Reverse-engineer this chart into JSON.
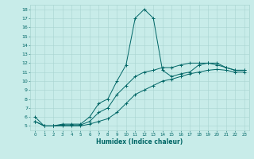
{
  "title": "",
  "xlabel": "Humidex (Indice chaleur)",
  "bg_color": "#c8ece9",
  "grid_color": "#a8d4d0",
  "line_color": "#006666",
  "xlim": [
    -0.5,
    23.5
  ],
  "ylim": [
    4.5,
    18.5
  ],
  "xticks": [
    0,
    1,
    2,
    3,
    4,
    5,
    6,
    7,
    8,
    9,
    10,
    11,
    12,
    13,
    14,
    15,
    16,
    17,
    18,
    19,
    20,
    21,
    22,
    23
  ],
  "yticks": [
    5,
    6,
    7,
    8,
    9,
    10,
    11,
    12,
    13,
    14,
    15,
    16,
    17,
    18
  ],
  "series": [
    {
      "x": [
        0,
        1,
        2,
        3,
        4,
        5,
        6,
        7,
        8,
        9,
        10,
        11,
        12,
        13,
        14,
        15,
        16,
        17,
        18,
        19,
        20,
        21,
        22,
        23
      ],
      "y": [
        6.0,
        5.0,
        5.0,
        5.2,
        5.2,
        5.2,
        6.0,
        7.5,
        8.0,
        10.0,
        11.8,
        17.0,
        18.0,
        17.0,
        11.2,
        10.5,
        10.8,
        11.0,
        11.8,
        12.0,
        12.0,
        11.5,
        11.2,
        11.2
      ]
    },
    {
      "x": [
        0,
        1,
        2,
        3,
        4,
        5,
        6,
        7,
        8,
        9,
        10,
        11,
        12,
        13,
        14,
        15,
        16,
        17,
        18,
        19,
        20,
        21,
        22,
        23
      ],
      "y": [
        5.5,
        5.0,
        5.0,
        5.1,
        5.1,
        5.1,
        5.5,
        6.5,
        7.0,
        8.5,
        9.5,
        10.5,
        11.0,
        11.2,
        11.5,
        11.5,
        11.8,
        12.0,
        12.0,
        12.0,
        11.8,
        11.5,
        11.2,
        11.2
      ]
    },
    {
      "x": [
        0,
        1,
        2,
        3,
        4,
        5,
        6,
        7,
        8,
        9,
        10,
        11,
        12,
        13,
        14,
        15,
        16,
        17,
        18,
        19,
        20,
        21,
        22,
        23
      ],
      "y": [
        5.5,
        5.0,
        5.0,
        5.0,
        5.0,
        5.0,
        5.2,
        5.5,
        5.8,
        6.5,
        7.5,
        8.5,
        9.0,
        9.5,
        10.0,
        10.2,
        10.5,
        10.8,
        11.0,
        11.2,
        11.3,
        11.2,
        11.0,
        11.0
      ]
    }
  ]
}
